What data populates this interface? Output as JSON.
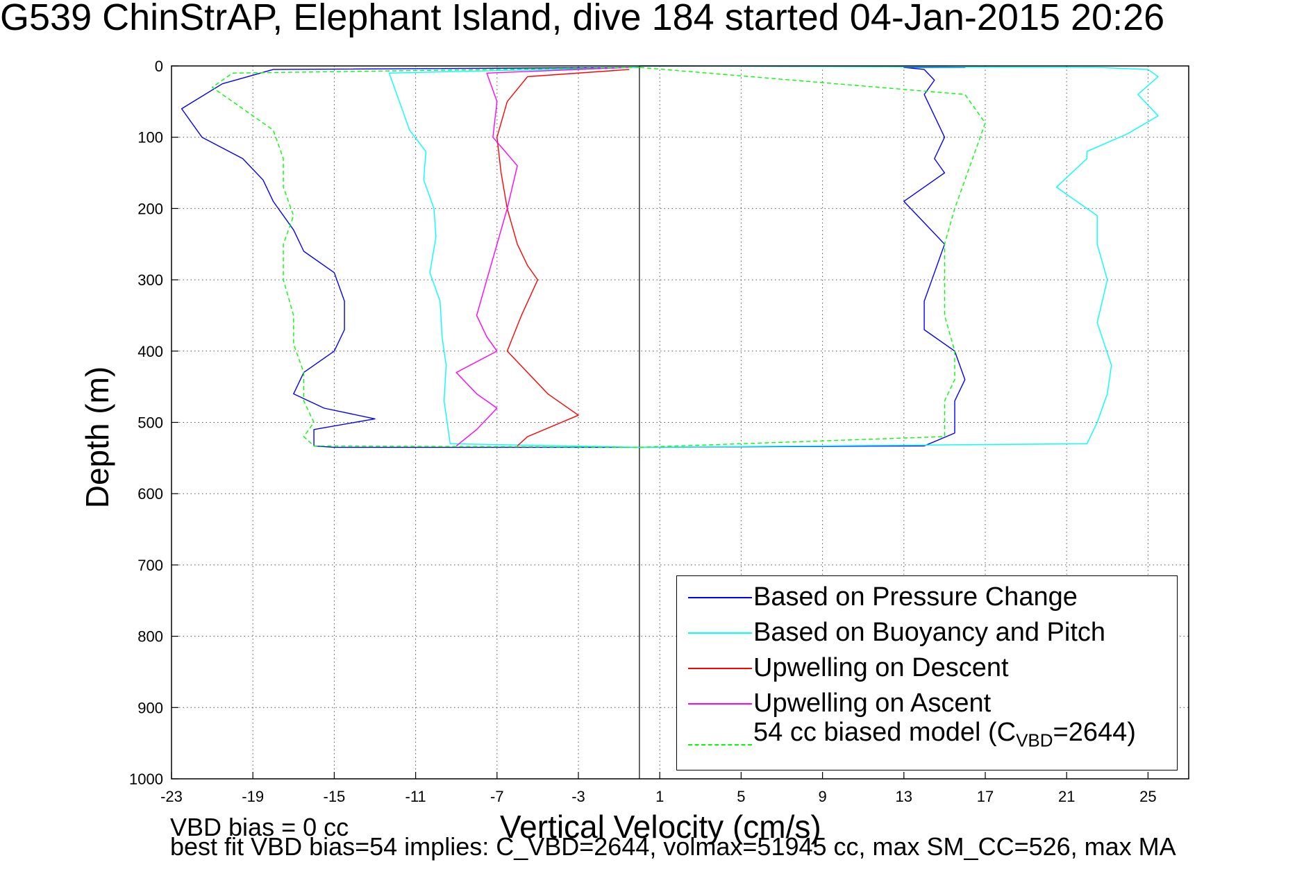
{
  "title": "G539 ChinStrAP, Elephant Island, dive 184 started 04-Jan-2015 20:26",
  "footer": {
    "line1": "VBD bias = 0 cc",
    "line2": "best fit VBD bias=54 implies: C_VBD=2644, volmax=51945 cc, max SM_CC=526, max MA"
  },
  "chart_data": {
    "type": "line",
    "title": "G539 ChinStrAP, Elephant Island, dive 184 started 04-Jan-2015 20:26",
    "xlabel": "Vertical Velocity (cm/s)",
    "ylabel": "Depth (m)",
    "xlim": [
      -23,
      27
    ],
    "ylim": [
      0,
      1000
    ],
    "y_reversed": true,
    "grid": true,
    "legend_position": "bottom-right",
    "x_ticks": [
      -23,
      -19,
      -15,
      -11,
      -7,
      -3,
      1,
      5,
      9,
      13,
      17,
      21,
      25
    ],
    "y_ticks": [
      0,
      100,
      200,
      300,
      400,
      500,
      600,
      700,
      800,
      900,
      1000
    ],
    "zero_line_x": 0,
    "series": [
      {
        "name": "Based on Pressure Change",
        "color": "#0000ff",
        "dash": "solid",
        "x": [
          0,
          -18,
          -20.5,
          -22.5,
          -21.5,
          -19.5,
          -18.5,
          -18,
          -17,
          -16.5,
          -15,
          -14.5,
          -14.5,
          -15,
          -16.5,
          -17,
          -15.5,
          -13,
          -16,
          -16,
          -16,
          -15,
          0,
          14,
          15.5,
          15.5,
          16,
          15.5,
          14,
          14,
          14.5,
          15,
          14,
          13,
          15,
          14.5,
          15,
          14.5,
          14,
          14.5,
          14,
          13,
          16,
          14.5,
          0
        ],
        "y": [
          2,
          5,
          25,
          60,
          100,
          130,
          160,
          190,
          230,
          260,
          290,
          330,
          370,
          400,
          430,
          460,
          480,
          495,
          510,
          520,
          533,
          535,
          535,
          533,
          515,
          470,
          440,
          400,
          370,
          330,
          290,
          250,
          220,
          190,
          150,
          130,
          100,
          70,
          40,
          20,
          5,
          2,
          2,
          1,
          0
        ]
      },
      {
        "name": "Based on Buoyancy and Pitch",
        "color": "#00ffff",
        "dash": "solid",
        "x": [
          0,
          -12.3,
          -11.8,
          -11.3,
          -10.5,
          -10.6,
          -10.1,
          -10,
          -10.3,
          -9.8,
          -9.7,
          -9.5,
          -9.6,
          -9.3,
          0,
          22,
          22.5,
          23,
          23.2,
          22.5,
          23,
          22.5,
          22.5,
          20.5,
          22,
          22,
          24,
          25.5,
          24.5,
          25.5,
          25,
          22.5,
          0
        ],
        "y": [
          2,
          10,
          50,
          90,
          120,
          160,
          200,
          240,
          290,
          330,
          380,
          420,
          470,
          530,
          535,
          530,
          500,
          460,
          420,
          360,
          300,
          250,
          210,
          170,
          130,
          120,
          95,
          70,
          40,
          15,
          5,
          2,
          0
        ]
      },
      {
        "name": "Upwelling on Descent",
        "color": "#ff0000",
        "dash": "solid",
        "x": [
          -0.5,
          -5.5,
          -6.5,
          -7,
          -6.8,
          -6.5,
          -6,
          -5.5,
          -5,
          -5.8,
          -6.5,
          -5.5,
          -4.5,
          -3,
          -5.5,
          -6
        ],
        "y": [
          5,
          15,
          50,
          100,
          150,
          200,
          250,
          280,
          300,
          350,
          400,
          430,
          460,
          490,
          520,
          533
        ]
      },
      {
        "name": "Upwelling on Ascent",
        "color": "#ff00ff",
        "dash": "solid",
        "x": [
          -0.5,
          -7.5,
          -7,
          -7.2,
          -6,
          -6.5,
          -7,
          -7.5,
          -8,
          -7.5,
          -7,
          -9,
          -8,
          -7,
          -8,
          -9
        ],
        "y": [
          2,
          10,
          50,
          100,
          140,
          200,
          250,
          300,
          350,
          380,
          400,
          430,
          460,
          480,
          510,
          533
        ]
      },
      {
        "name": "54 cc biased model (C_VBD=2644)",
        "color": "#00ff00",
        "dash": "dashed",
        "x": [
          0,
          -20,
          -21,
          -19.5,
          -18,
          -17.5,
          -17.5,
          -17,
          -17.5,
          -17.5,
          -17,
          -17,
          -16.5,
          -16.5,
          -16,
          -16.5,
          -16,
          0,
          15,
          15,
          15.5,
          15.5,
          15,
          15,
          15,
          15.5,
          16,
          16.5,
          17,
          16,
          0
        ],
        "y": [
          2,
          10,
          30,
          60,
          90,
          130,
          170,
          210,
          250,
          300,
          350,
          390,
          430,
          470,
          500,
          520,
          533,
          535,
          520,
          470,
          440,
          400,
          350,
          300,
          250,
          200,
          160,
          120,
          80,
          40,
          2
        ]
      }
    ]
  }
}
